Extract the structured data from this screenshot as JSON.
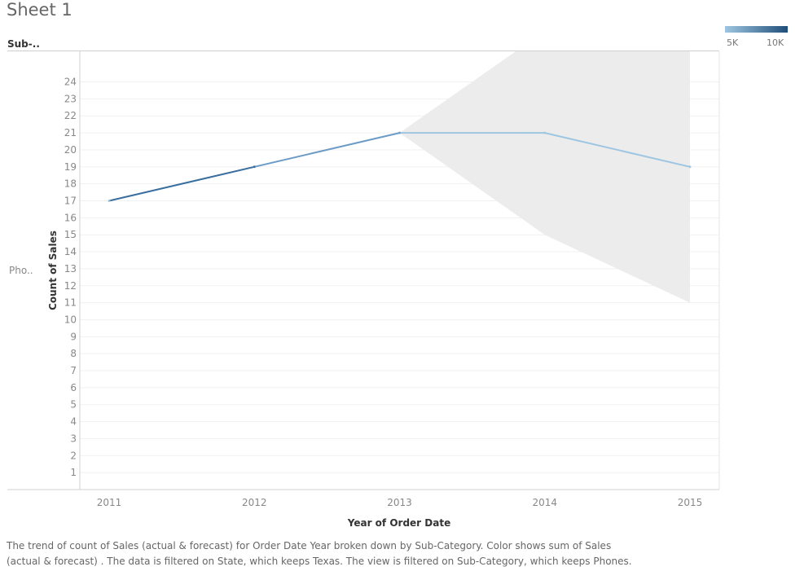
{
  "sheet": {
    "title": "Sheet 1"
  },
  "row_header": "Sub-..",
  "row_label": "Pho..",
  "legend": {
    "min_label": "5K",
    "max_label": "10K",
    "colors": [
      "#9ec6e2",
      "#1f4e79"
    ]
  },
  "footer": {
    "line1": "The trend of count of Sales (actual & forecast)  for Order Date Year broken down by Sub-Category.  Color shows sum of Sales",
    "line2": "(actual & forecast) . The data is filtered on State, which keeps Texas. The view is filtered on Sub-Category, which keeps Phones."
  },
  "chart_data": {
    "type": "line",
    "title": "",
    "xlabel": "Year of Order Date",
    "ylabel": "Count of Sales",
    "categories": [
      "2011",
      "2012",
      "2013",
      "2014",
      "2015"
    ],
    "yticks": [
      1,
      2,
      3,
      4,
      5,
      6,
      7,
      8,
      9,
      10,
      11,
      12,
      13,
      14,
      15,
      16,
      17,
      18,
      19,
      20,
      21,
      22,
      23,
      24
    ],
    "ylim": [
      0,
      25.8
    ],
    "series": [
      {
        "values": [
          17,
          19,
          21,
          21,
          19
        ],
        "colors": [
          "#9ec6e2",
          "#3a6e9e",
          "#6c9cc6",
          "#9ec6e2",
          "#9ec6e2"
        ]
      }
    ],
    "forecast_band": {
      "x": [
        "2013",
        "2014",
        "2015"
      ],
      "upper": [
        21,
        27,
        27
      ],
      "lower": [
        21,
        15,
        11
      ],
      "color": "#ececec"
    },
    "grid": true,
    "legend_position": "top-right"
  }
}
